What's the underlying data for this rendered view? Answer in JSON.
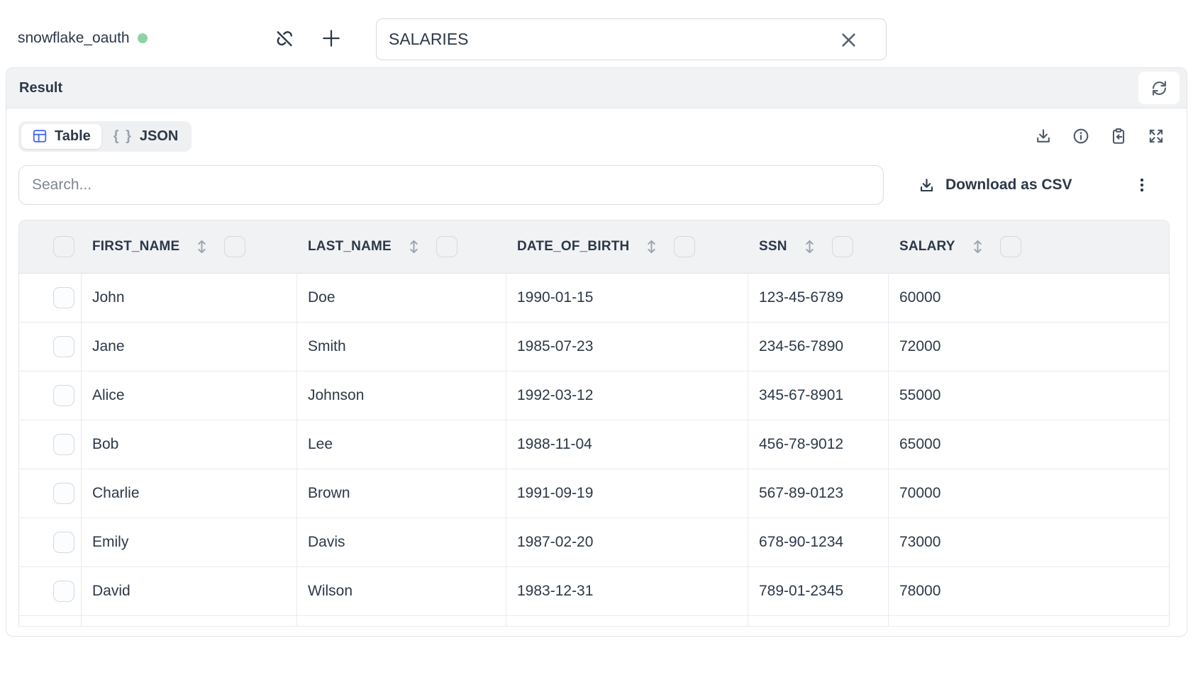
{
  "topbar": {
    "connection_name": "snowflake_oauth",
    "table_selector_value": "SALARIES"
  },
  "result_panel": {
    "title": "Result"
  },
  "view_tabs": {
    "table_label": "Table",
    "json_label": "JSON",
    "json_icon_text": "{ }"
  },
  "search": {
    "placeholder": "Search..."
  },
  "csv": {
    "label": "Download as CSV"
  },
  "data_table": {
    "columns": [
      "FIRST_NAME",
      "LAST_NAME",
      "DATE_OF_BIRTH",
      "SSN",
      "SALARY"
    ],
    "rows": [
      [
        "John",
        "Doe",
        "1990-01-15",
        "123-45-6789",
        "60000"
      ],
      [
        "Jane",
        "Smith",
        "1985-07-23",
        "234-56-7890",
        "72000"
      ],
      [
        "Alice",
        "Johnson",
        "1992-03-12",
        "345-67-8901",
        "55000"
      ],
      [
        "Bob",
        "Lee",
        "1988-11-04",
        "456-78-9012",
        "65000"
      ],
      [
        "Charlie",
        "Brown",
        "1991-09-19",
        "567-89-0123",
        "70000"
      ],
      [
        "Emily",
        "Davis",
        "1987-02-20",
        "678-90-1234",
        "73000"
      ],
      [
        "David",
        "Wilson",
        "1983-12-31",
        "789-01-2345",
        "78000"
      ]
    ],
    "has_partial_next_row": true
  },
  "colors": {
    "accent_blue": "#4767f5",
    "status_green": "#8fd3a3",
    "header_gray": "#f1f2f4",
    "text_dark": "#2c3848"
  }
}
